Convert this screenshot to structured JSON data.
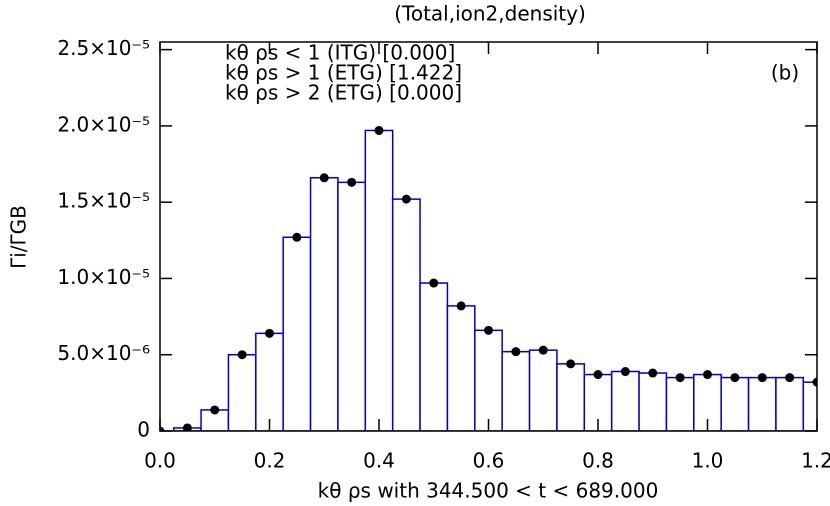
{
  "chart_data": {
    "type": "bar",
    "title": "(Total,ion2,density)",
    "panel_label": "(b)",
    "x_label": "kθ ρs with  344.500 < t < 689.000",
    "y_label": "Γi/ΓGB",
    "annotations": [
      "kθ ρs < 1 (ITG) [0.000]",
      "kθ ρs > 1 (ETG) [1.422]",
      "kθ ρs > 2 (ETG) [0.000]"
    ],
    "x": [
      0.0,
      0.05,
      0.1,
      0.15,
      0.2,
      0.25,
      0.3,
      0.35,
      0.4,
      0.45,
      0.5,
      0.55,
      0.6,
      0.65,
      0.7,
      0.75,
      0.8,
      0.85,
      0.9,
      0.95,
      1.0,
      1.05,
      1.1,
      1.15,
      1.2
    ],
    "values": [
      0,
      2e-07,
      1.38e-06,
      5e-06,
      6.4e-06,
      1.27e-05,
      1.66e-05,
      1.63e-05,
      1.97e-05,
      1.52e-05,
      9.7e-06,
      8.2e-06,
      6.6e-06,
      5.2e-06,
      5.3e-06,
      4.4e-06,
      3.7e-06,
      3.9e-06,
      3.8e-06,
      3.5e-06,
      3.7e-06,
      3.5e-06,
      3.5e-06,
      3.5e-06,
      3.2e-06
    ],
    "color": "#0000cc",
    "marker_color": "#000000",
    "xlim": [
      0,
      1.2
    ],
    "ylim": [
      0,
      2.55e-05
    ],
    "xticks": [
      {
        "value": 0,
        "label": "0.0"
      },
      0.2,
      0.4,
      0.6,
      0.8,
      {
        "value": 1,
        "label": "1.0"
      },
      1.2
    ],
    "yticks": [
      {
        "value": 0,
        "label": "0"
      },
      {
        "value": 5e-06,
        "label": "5.0×10⁻⁶"
      },
      {
        "value": 1e-05,
        "label": "1.0×10⁻⁵"
      },
      {
        "value": 1.5e-05,
        "label": "1.5×10⁻⁵"
      },
      {
        "value": 2e-05,
        "label": "2.0×10⁻⁵"
      },
      {
        "value": 2.5e-05,
        "label": "2.5×10⁻⁵"
      }
    ]
  }
}
